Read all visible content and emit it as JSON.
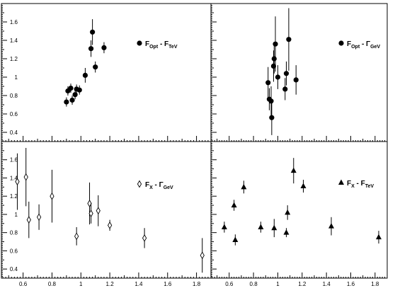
{
  "chart_data": [
    {
      "type": "scatter",
      "position": "top-left",
      "xlim": [
        0.45,
        1.9
      ],
      "ylim": [
        0.3,
        1.8
      ],
      "xticks": [],
      "yticks": [
        "0.4",
        "0.6",
        "0.8",
        "1",
        "1.2",
        "1.4",
        "1.6"
      ],
      "marker": "filled-circle",
      "legend": {
        "placement": "right",
        "main": "F",
        "sub1": "Opt",
        "mid": " - F",
        "sub2": "TeV"
      },
      "points": [
        {
          "x": 0.9,
          "y": 0.73,
          "yerr": 0.05
        },
        {
          "x": 0.91,
          "y": 0.85,
          "yerr": 0.05
        },
        {
          "x": 0.93,
          "y": 0.88,
          "yerr": 0.05
        },
        {
          "x": 0.94,
          "y": 0.75,
          "yerr": 0.05
        },
        {
          "x": 0.96,
          "y": 0.81,
          "yerr": 0.05
        },
        {
          "x": 0.97,
          "y": 0.87,
          "yerr": 0.05
        },
        {
          "x": 0.99,
          "y": 0.86,
          "yerr": 0.05
        },
        {
          "x": 1.03,
          "y": 1.02,
          "yerr": 0.08
        },
        {
          "x": 1.07,
          "y": 1.31,
          "yerr": 0.09
        },
        {
          "x": 1.08,
          "y": 1.49,
          "yerr": 0.14
        },
        {
          "x": 1.1,
          "y": 1.11,
          "yerr": 0.06
        },
        {
          "x": 1.16,
          "y": 1.32,
          "yerr": 0.06
        }
      ]
    },
    {
      "type": "scatter",
      "position": "top-right",
      "xlim": [
        0.45,
        1.9
      ],
      "ylim": [
        0.3,
        1.8
      ],
      "xticks": [],
      "yticks": [],
      "marker": "filled-circle",
      "legend": {
        "placement": "right",
        "main": "F",
        "sub1": "Opt",
        "mid": " - Γ",
        "sub2": "GeV"
      },
      "points": [
        {
          "x": 0.92,
          "y": 0.94,
          "yerr": 0.17
        },
        {
          "x": 0.93,
          "y": 0.76,
          "yerr": 0.12
        },
        {
          "x": 0.945,
          "y": 0.74,
          "yerr": 0.16
        },
        {
          "x": 0.95,
          "y": 0.56,
          "yerr": 0.19
        },
        {
          "x": 0.965,
          "y": 1.12,
          "yerr": 0.17
        },
        {
          "x": 0.97,
          "y": 1.2,
          "yerr": 0.16
        },
        {
          "x": 0.98,
          "y": 1.36,
          "yerr": 0.3
        },
        {
          "x": 1.0,
          "y": 1.0,
          "yerr": 0.13
        },
        {
          "x": 1.06,
          "y": 0.87,
          "yerr": 0.12
        },
        {
          "x": 1.07,
          "y": 1.04,
          "yerr": 0.13
        },
        {
          "x": 1.09,
          "y": 1.41,
          "yerr": 0.34
        },
        {
          "x": 1.15,
          "y": 0.97,
          "yerr": 0.16
        }
      ]
    },
    {
      "type": "scatter",
      "position": "bottom-left",
      "xlim": [
        0.45,
        1.9
      ],
      "ylim": [
        0.3,
        1.8
      ],
      "xticks": [
        "0.6",
        "0.8",
        "1",
        "1.2",
        "1.4",
        "1.6",
        "1.8"
      ],
      "yticks": [
        "0.4",
        "0.6",
        "0.8",
        "1",
        "1.2",
        "1.4",
        "1.6"
      ],
      "marker": "open-diamond",
      "legend": {
        "placement": "right",
        "main": "F",
        "sub1": "X",
        "mid": " - Γ",
        "sub2": "GeV"
      },
      "points": [
        {
          "x": 0.56,
          "y": 1.36,
          "yerr": 0.31
        },
        {
          "x": 0.62,
          "y": 1.41,
          "yerr": 0.32
        },
        {
          "x": 0.64,
          "y": 0.94,
          "yerr": 0.2
        },
        {
          "x": 0.71,
          "y": 0.97,
          "yerr": 0.14
        },
        {
          "x": 0.8,
          "y": 1.2,
          "yerr": 0.29
        },
        {
          "x": 0.97,
          "y": 0.76,
          "yerr": 0.1
        },
        {
          "x": 1.06,
          "y": 1.12,
          "yerr": 0.23
        },
        {
          "x": 1.07,
          "y": 1.01,
          "yerr": 0.11
        },
        {
          "x": 1.12,
          "y": 1.04,
          "yerr": 0.17
        },
        {
          "x": 1.2,
          "y": 0.88,
          "yerr": 0.06
        },
        {
          "x": 1.44,
          "y": 0.74,
          "yerr": 0.11
        },
        {
          "x": 1.84,
          "y": 0.55,
          "yerr": 0.19
        }
      ]
    },
    {
      "type": "scatter",
      "position": "bottom-right",
      "xlim": [
        0.45,
        1.9
      ],
      "ylim": [
        0.3,
        1.8
      ],
      "xticks": [
        "0.6",
        "0.8",
        "1",
        "1.2",
        "1.4",
        "1.6",
        "1.8"
      ],
      "yticks": [],
      "marker": "filled-triangle",
      "legend": {
        "placement": "right",
        "main": "F",
        "sub1": "X",
        "mid": " - F",
        "sub2": "TeV"
      },
      "points": [
        {
          "x": 0.56,
          "y": 0.86,
          "yerr": 0.06
        },
        {
          "x": 0.64,
          "y": 1.1,
          "yerr": 0.06
        },
        {
          "x": 0.65,
          "y": 0.72,
          "yerr": 0.06
        },
        {
          "x": 0.72,
          "y": 1.3,
          "yerr": 0.07
        },
        {
          "x": 0.86,
          "y": 0.86,
          "yerr": 0.06
        },
        {
          "x": 0.97,
          "y": 0.85,
          "yerr": 0.1
        },
        {
          "x": 1.07,
          "y": 0.8,
          "yerr": 0.05
        },
        {
          "x": 1.08,
          "y": 1.02,
          "yerr": 0.08
        },
        {
          "x": 1.13,
          "y": 1.48,
          "yerr": 0.14
        },
        {
          "x": 1.21,
          "y": 1.31,
          "yerr": 0.07
        },
        {
          "x": 1.44,
          "y": 0.87,
          "yerr": 0.1
        },
        {
          "x": 1.83,
          "y": 0.75,
          "yerr": 0.07
        }
      ]
    }
  ]
}
